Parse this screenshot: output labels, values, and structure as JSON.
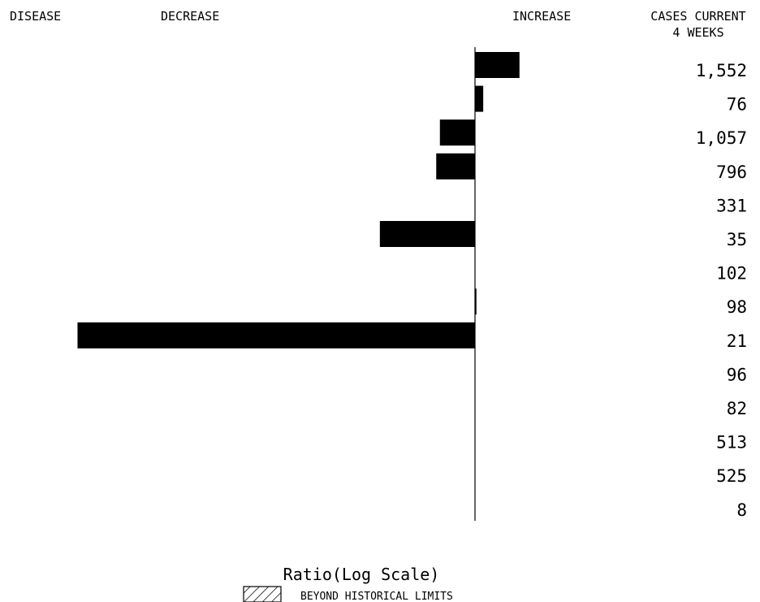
{
  "headers": {
    "disease": "DISEASE",
    "decrease": "DECREASE",
    "increase": "INCREASE",
    "cases_line1": "CASES CURRENT",
    "cases_line2": "4 WEEKS"
  },
  "legend": {
    "label": "BEYOND HISTORICAL LIMITS"
  },
  "chart_data": {
    "type": "bar",
    "orientation": "horizontal",
    "xlabel": "Ratio(Log Scale)",
    "ylabel": "",
    "log_scale": true,
    "baseline_ratio": 1,
    "grid": false,
    "categories": [
      "",
      "",
      "",
      "",
      "",
      "",
      "",
      "",
      "",
      "",
      "",
      "",
      "",
      ""
    ],
    "cases_current_4_weeks": [
      "1,552",
      "76",
      "1,057",
      "796",
      "331",
      "35",
      "102",
      "98",
      "21",
      "96",
      "82",
      "513",
      "525",
      "8"
    ],
    "values": [
      1.37,
      1.06,
      0.78,
      0.76,
      1.0,
      0.51,
      1.0,
      1.01,
      0.06,
      1.0,
      1.0,
      1.0,
      1.0,
      1.0
    ],
    "colors": {
      "bar": "#000000",
      "axis": "#000000",
      "background": "#ffffff"
    }
  }
}
